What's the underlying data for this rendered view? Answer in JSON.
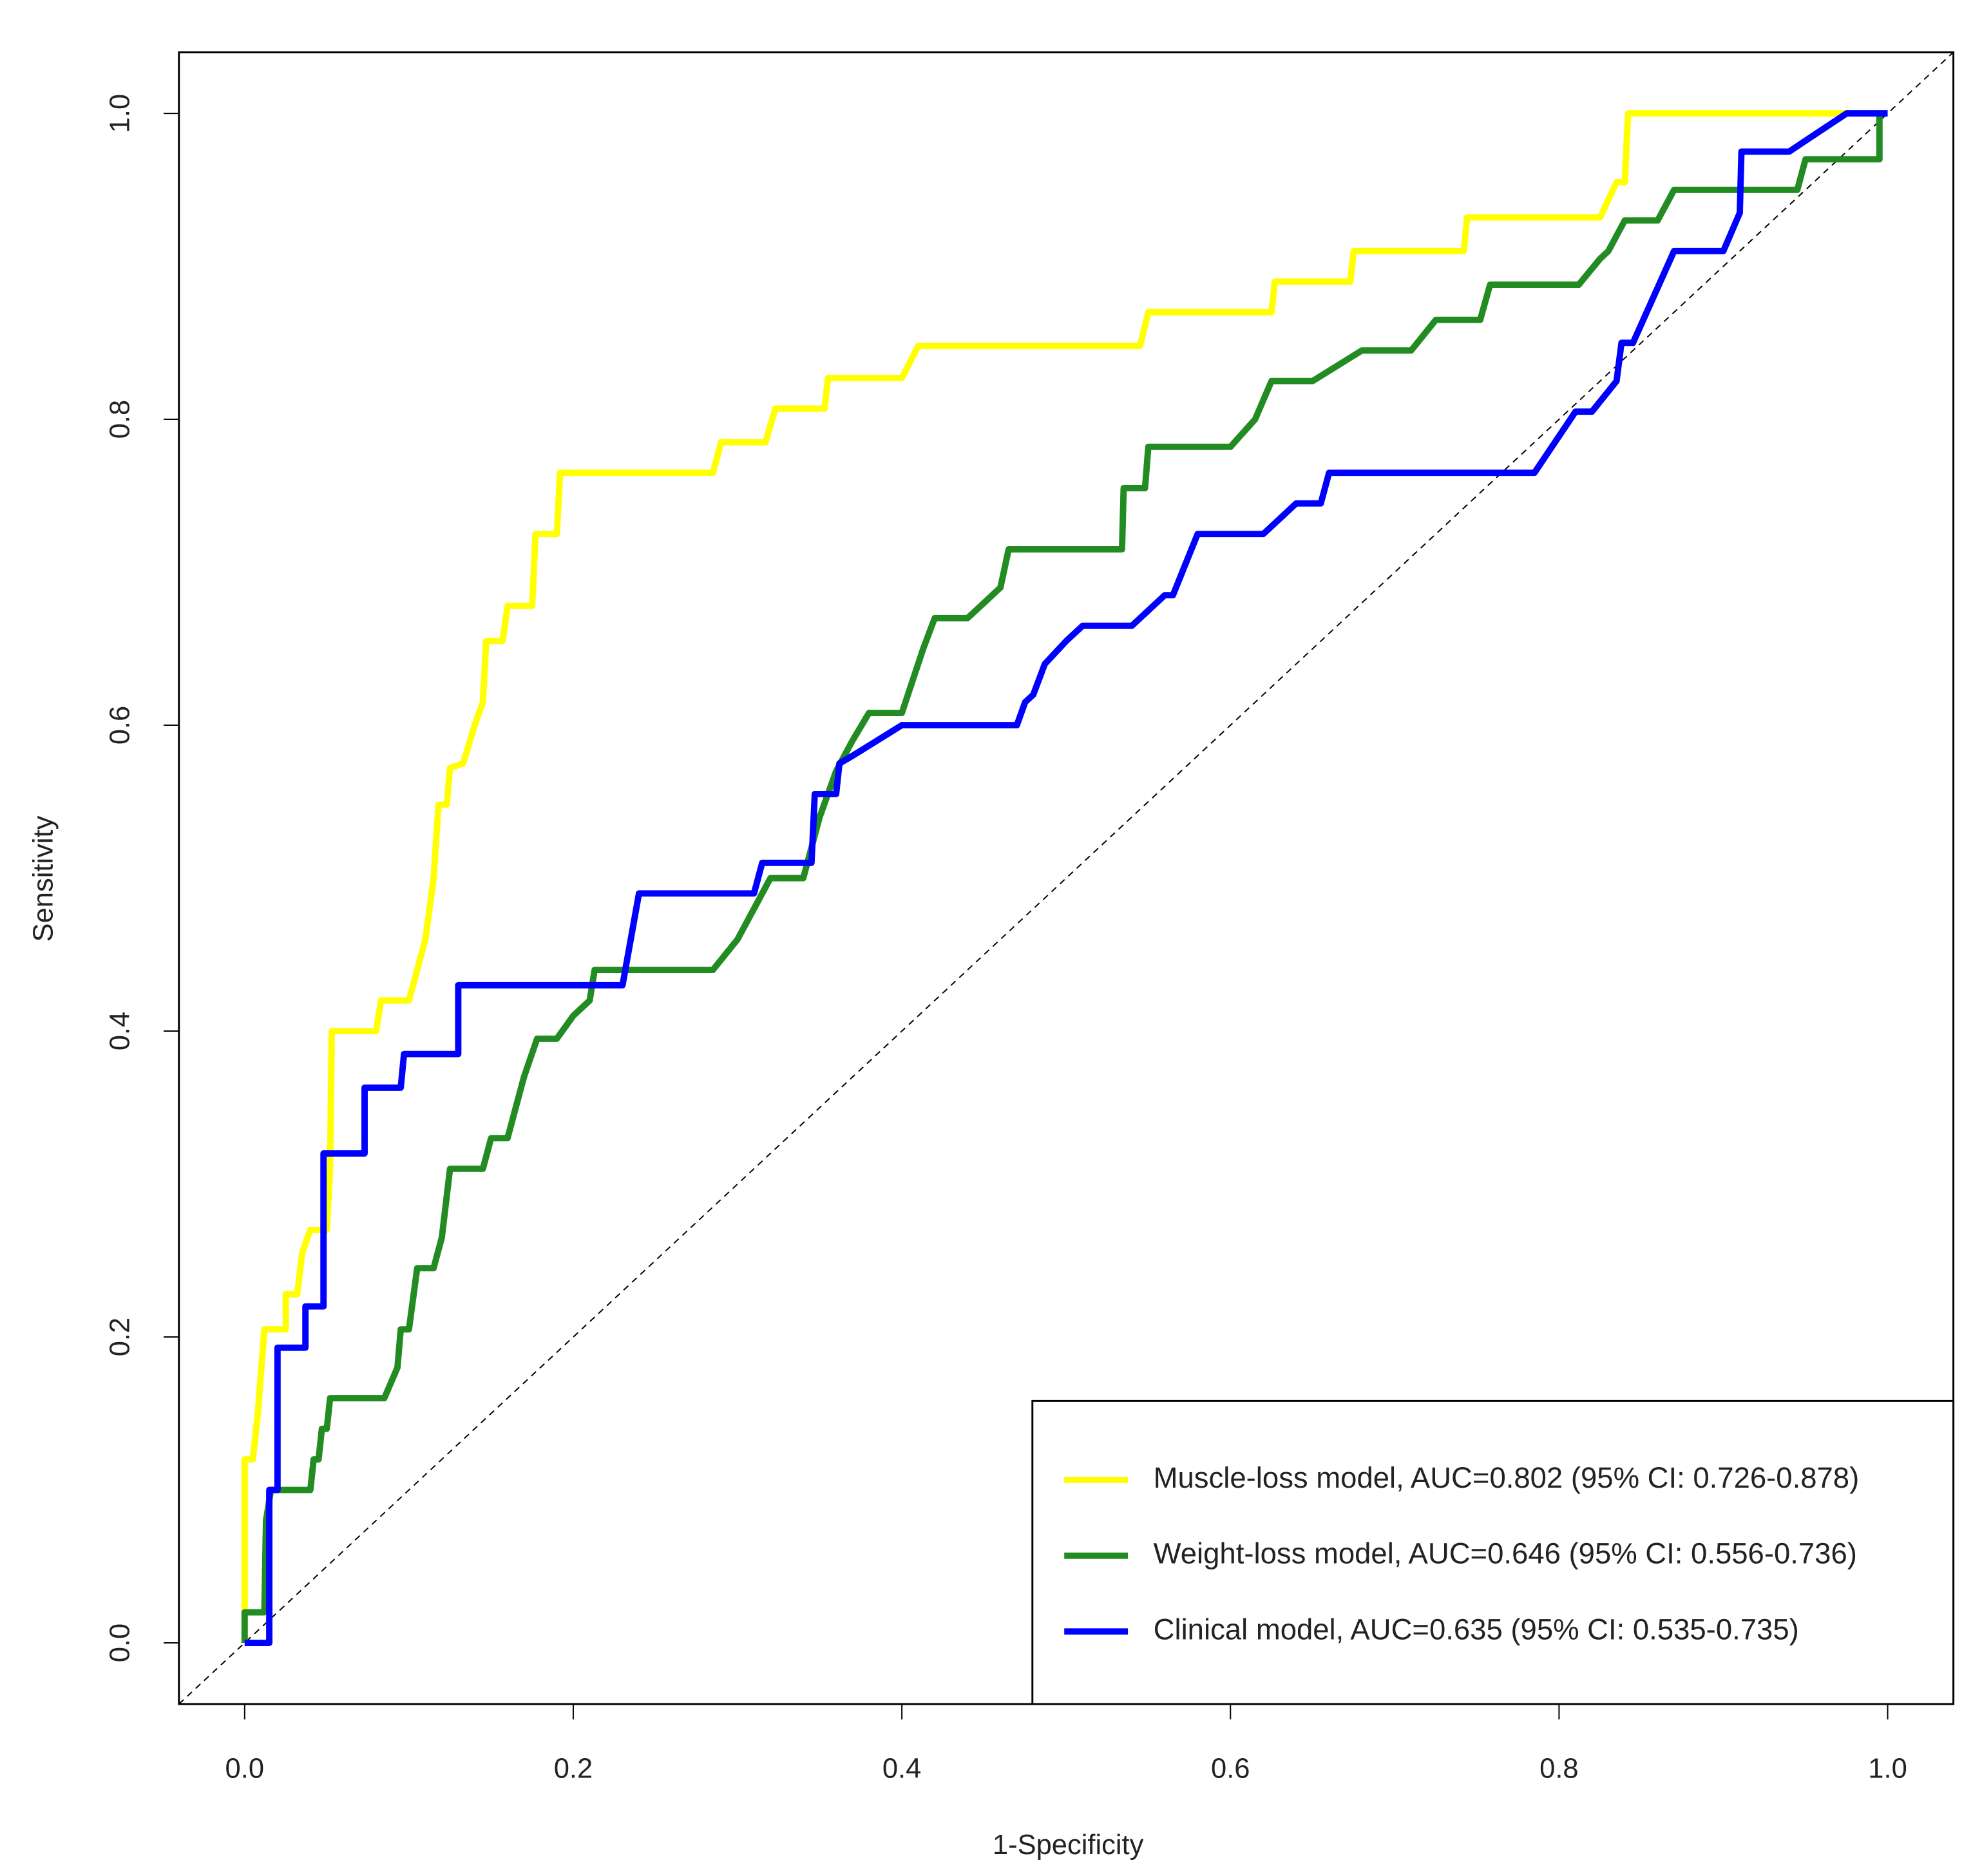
{
  "chart_data": {
    "type": "line",
    "x_label": "1-Specificity",
    "y_label": "Sensitivity",
    "xlim": [
      -0.04,
      1.04
    ],
    "ylim": [
      -0.04,
      1.04
    ],
    "xticks": [
      {
        "value": 0,
        "label": "0.0"
      },
      0.2,
      0.4,
      0.6,
      0.8,
      {
        "value": 1,
        "label": "1.0"
      }
    ],
    "yticks": [
      {
        "value": 0,
        "label": "0.0"
      },
      0.2,
      0.4,
      0.6,
      0.8,
      {
        "value": 1,
        "label": "1.0"
      }
    ],
    "legend_position": "bottom-right",
    "series": [
      {
        "name": "Muscle-loss model, AUC=0.802 (95% CI: 0.726-0.878)",
        "color": "#ffff00",
        "x": [
          0,
          0,
          0.005,
          0.008,
          0.012,
          0.025,
          0.025,
          0.032,
          0.035,
          0.04,
          0.05,
          0.052,
          0.053,
          0.08,
          0.083,
          0.1,
          0.11,
          0.115,
          0.118,
          0.123,
          0.125,
          0.133,
          0.14,
          0.145,
          0.147,
          0.157,
          0.16,
          0.175,
          0.177,
          0.19,
          0.192,
          0.285,
          0.29,
          0.317,
          0.323,
          0.353,
          0.355,
          0.4,
          0.41,
          0.545,
          0.55,
          0.625,
          0.627,
          0.673,
          0.675,
          0.742,
          0.744,
          0.825,
          0.835,
          0.84,
          0.842,
          1
        ],
        "values": [
          0,
          0.12,
          0.12,
          0.15,
          0.205,
          0.205,
          0.228,
          0.228,
          0.255,
          0.27,
          0.27,
          0.31,
          0.4,
          0.4,
          0.42,
          0.42,
          0.46,
          0.5,
          0.548,
          0.548,
          0.572,
          0.575,
          0.6,
          0.615,
          0.655,
          0.655,
          0.678,
          0.678,
          0.725,
          0.725,
          0.765,
          0.765,
          0.785,
          0.785,
          0.807,
          0.807,
          0.827,
          0.827,
          0.848,
          0.848,
          0.87,
          0.87,
          0.89,
          0.89,
          0.91,
          0.91,
          0.932,
          0.932,
          0.955,
          0.955,
          1,
          1
        ]
      },
      {
        "name": "Weight-loss model, AUC=0.646 (95% CI: 0.556-0.736)",
        "color": "#228b22",
        "x": [
          0,
          0,
          0.012,
          0.013,
          0.016,
          0.04,
          0.042,
          0.045,
          0.047,
          0.05,
          0.052,
          0.085,
          0.093,
          0.095,
          0.1,
          0.105,
          0.115,
          0.12,
          0.125,
          0.145,
          0.15,
          0.16,
          0.17,
          0.178,
          0.19,
          0.2,
          0.21,
          0.213,
          0.285,
          0.3,
          0.32,
          0.34,
          0.35,
          0.36,
          0.37,
          0.38,
          0.4,
          0.413,
          0.42,
          0.44,
          0.46,
          0.465,
          0.534,
          0.535,
          0.548,
          0.55,
          0.6,
          0.615,
          0.625,
          0.65,
          0.68,
          0.71,
          0.725,
          0.752,
          0.758,
          0.812,
          0.825,
          0.83,
          0.84,
          0.86,
          0.87,
          0.945,
          0.95,
          0.995,
          0.995
        ],
        "values": [
          0,
          0.02,
          0.02,
          0.08,
          0.1,
          0.1,
          0.12,
          0.12,
          0.14,
          0.14,
          0.16,
          0.16,
          0.18,
          0.205,
          0.205,
          0.245,
          0.245,
          0.265,
          0.31,
          0.31,
          0.33,
          0.33,
          0.37,
          0.395,
          0.395,
          0.41,
          0.42,
          0.44,
          0.44,
          0.46,
          0.5,
          0.5,
          0.54,
          0.57,
          0.59,
          0.608,
          0.608,
          0.65,
          0.67,
          0.67,
          0.69,
          0.715,
          0.715,
          0.755,
          0.755,
          0.782,
          0.782,
          0.8,
          0.825,
          0.825,
          0.845,
          0.845,
          0.865,
          0.865,
          0.888,
          0.888,
          0.905,
          0.91,
          0.93,
          0.93,
          0.95,
          0.95,
          0.97,
          0.97,
          1
        ]
      },
      {
        "name": "Clinical model, AUC=0.635 (95% CI: 0.535-0.735)",
        "color": "#0000ff",
        "x": [
          0,
          0.015,
          0.015,
          0.02,
          0.02,
          0.037,
          0.037,
          0.048,
          0.048,
          0.073,
          0.073,
          0.095,
          0.097,
          0.13,
          0.13,
          0.23,
          0.24,
          0.31,
          0.315,
          0.345,
          0.347,
          0.36,
          0.362,
          0.37,
          0.4,
          0.47,
          0.475,
          0.48,
          0.487,
          0.5,
          0.51,
          0.54,
          0.56,
          0.565,
          0.58,
          0.62,
          0.64,
          0.655,
          0.66,
          0.785,
          0.81,
          0.82,
          0.835,
          0.838,
          0.845,
          0.87,
          0.9,
          0.91,
          0.911,
          0.94,
          0.975,
          1
        ],
        "values": [
          0,
          0,
          0.1,
          0.1,
          0.193,
          0.193,
          0.22,
          0.22,
          0.32,
          0.32,
          0.363,
          0.363,
          0.385,
          0.385,
          0.43,
          0.43,
          0.49,
          0.49,
          0.51,
          0.51,
          0.555,
          0.555,
          0.575,
          0.58,
          0.6,
          0.6,
          0.615,
          0.62,
          0.64,
          0.655,
          0.665,
          0.665,
          0.685,
          0.685,
          0.725,
          0.725,
          0.745,
          0.745,
          0.765,
          0.765,
          0.805,
          0.805,
          0.825,
          0.85,
          0.85,
          0.91,
          0.91,
          0.935,
          0.975,
          0.975,
          1,
          1
        ]
      }
    ]
  }
}
